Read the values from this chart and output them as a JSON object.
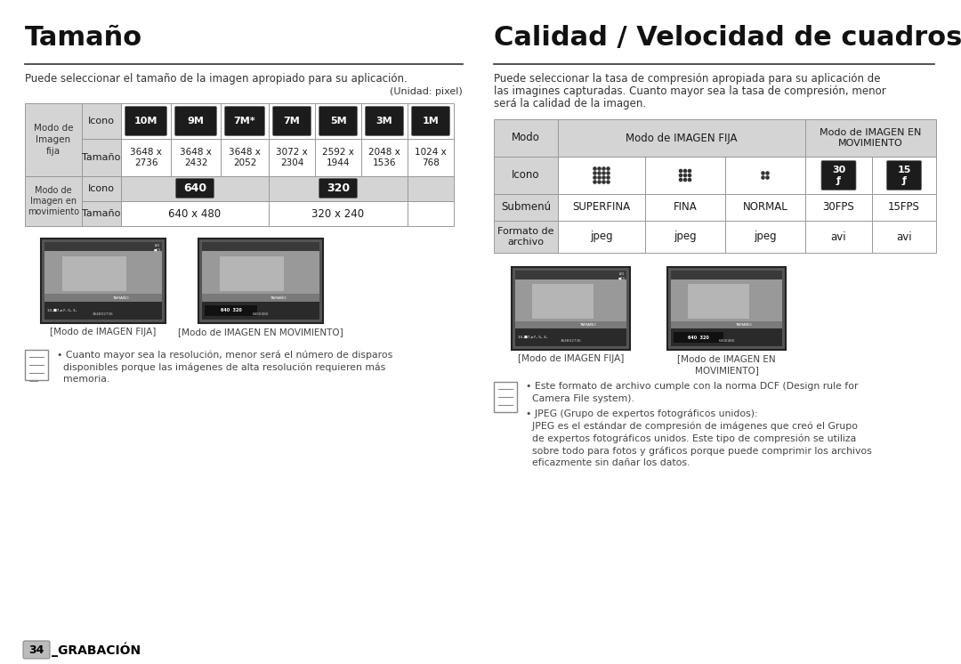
{
  "bg_color": "#ffffff",
  "left_title": "Tamaño",
  "right_title": "Calidad / Velocidad de cuadros",
  "left_subtitle": "Puede seleccionar el tamaño de la imagen apropiado para su aplicación.",
  "left_subtitle2": "(Unidad: pixel)",
  "right_subtitle_line1": "Puede seleccionar la tasa de compresión apropiada para su aplicación de",
  "right_subtitle_line2": "las imagines capturadas. Cuanto mayor sea la tasa de compresión, menor",
  "right_subtitle_line3": "será la calidad de la imagen.",
  "icon_labels": [
    "10M",
    "9M",
    "7M*",
    "7M",
    "5M",
    "3M",
    "1M"
  ],
  "size_labels": [
    "3648 x\n2736",
    "3648 x\n2432",
    "3648 x\n2052",
    "3072 x\n2304",
    "2592 x\n1944",
    "2048 x\n1536",
    "1024 x\n768"
  ],
  "caption_left1": "[Modo de IMAGEN FIJA]",
  "caption_left2": "[Modo de IMAGEN EN MOVIMIENTO]",
  "caption_right1": "[Modo de IMAGEN FIJA]",
  "caption_right2_line1": "[Modo de IMAGEN EN",
  "caption_right2_line2": "MOVIMIENTO]",
  "note_left_line1": "Cuanto mayor sea la resolución, menor será el número de disparos",
  "note_left_line2": "disponibles porque las imágenes de alta resolución requieren más",
  "note_left_line3": "memoria.",
  "note_right_b1": "Este formato de archivo cumple con la norma DCF (Design rule for",
  "note_right_b2": "Camera File system).",
  "note_right_b3": "JPEG (Grupo de expertos fotográficos unidos):",
  "note_right_b4": "JPEG es el estándar de compresión de imágenes que creó el Grupo",
  "note_right_b5": "de expertos fotográficos unidos. Este tipo de compresión se utiliza",
  "note_right_b6": "sobre todo para fotos y gráficos porque puede comprimir los archivos",
  "note_right_b7": "eficazmente sin dañar los datos.",
  "footer_num": "34",
  "footer_text": "_GRABACIÓN",
  "gray_light": "#d4d4d4",
  "border_color": "#999999",
  "text_dark": "#1a1a1a",
  "text_gray": "#444444"
}
